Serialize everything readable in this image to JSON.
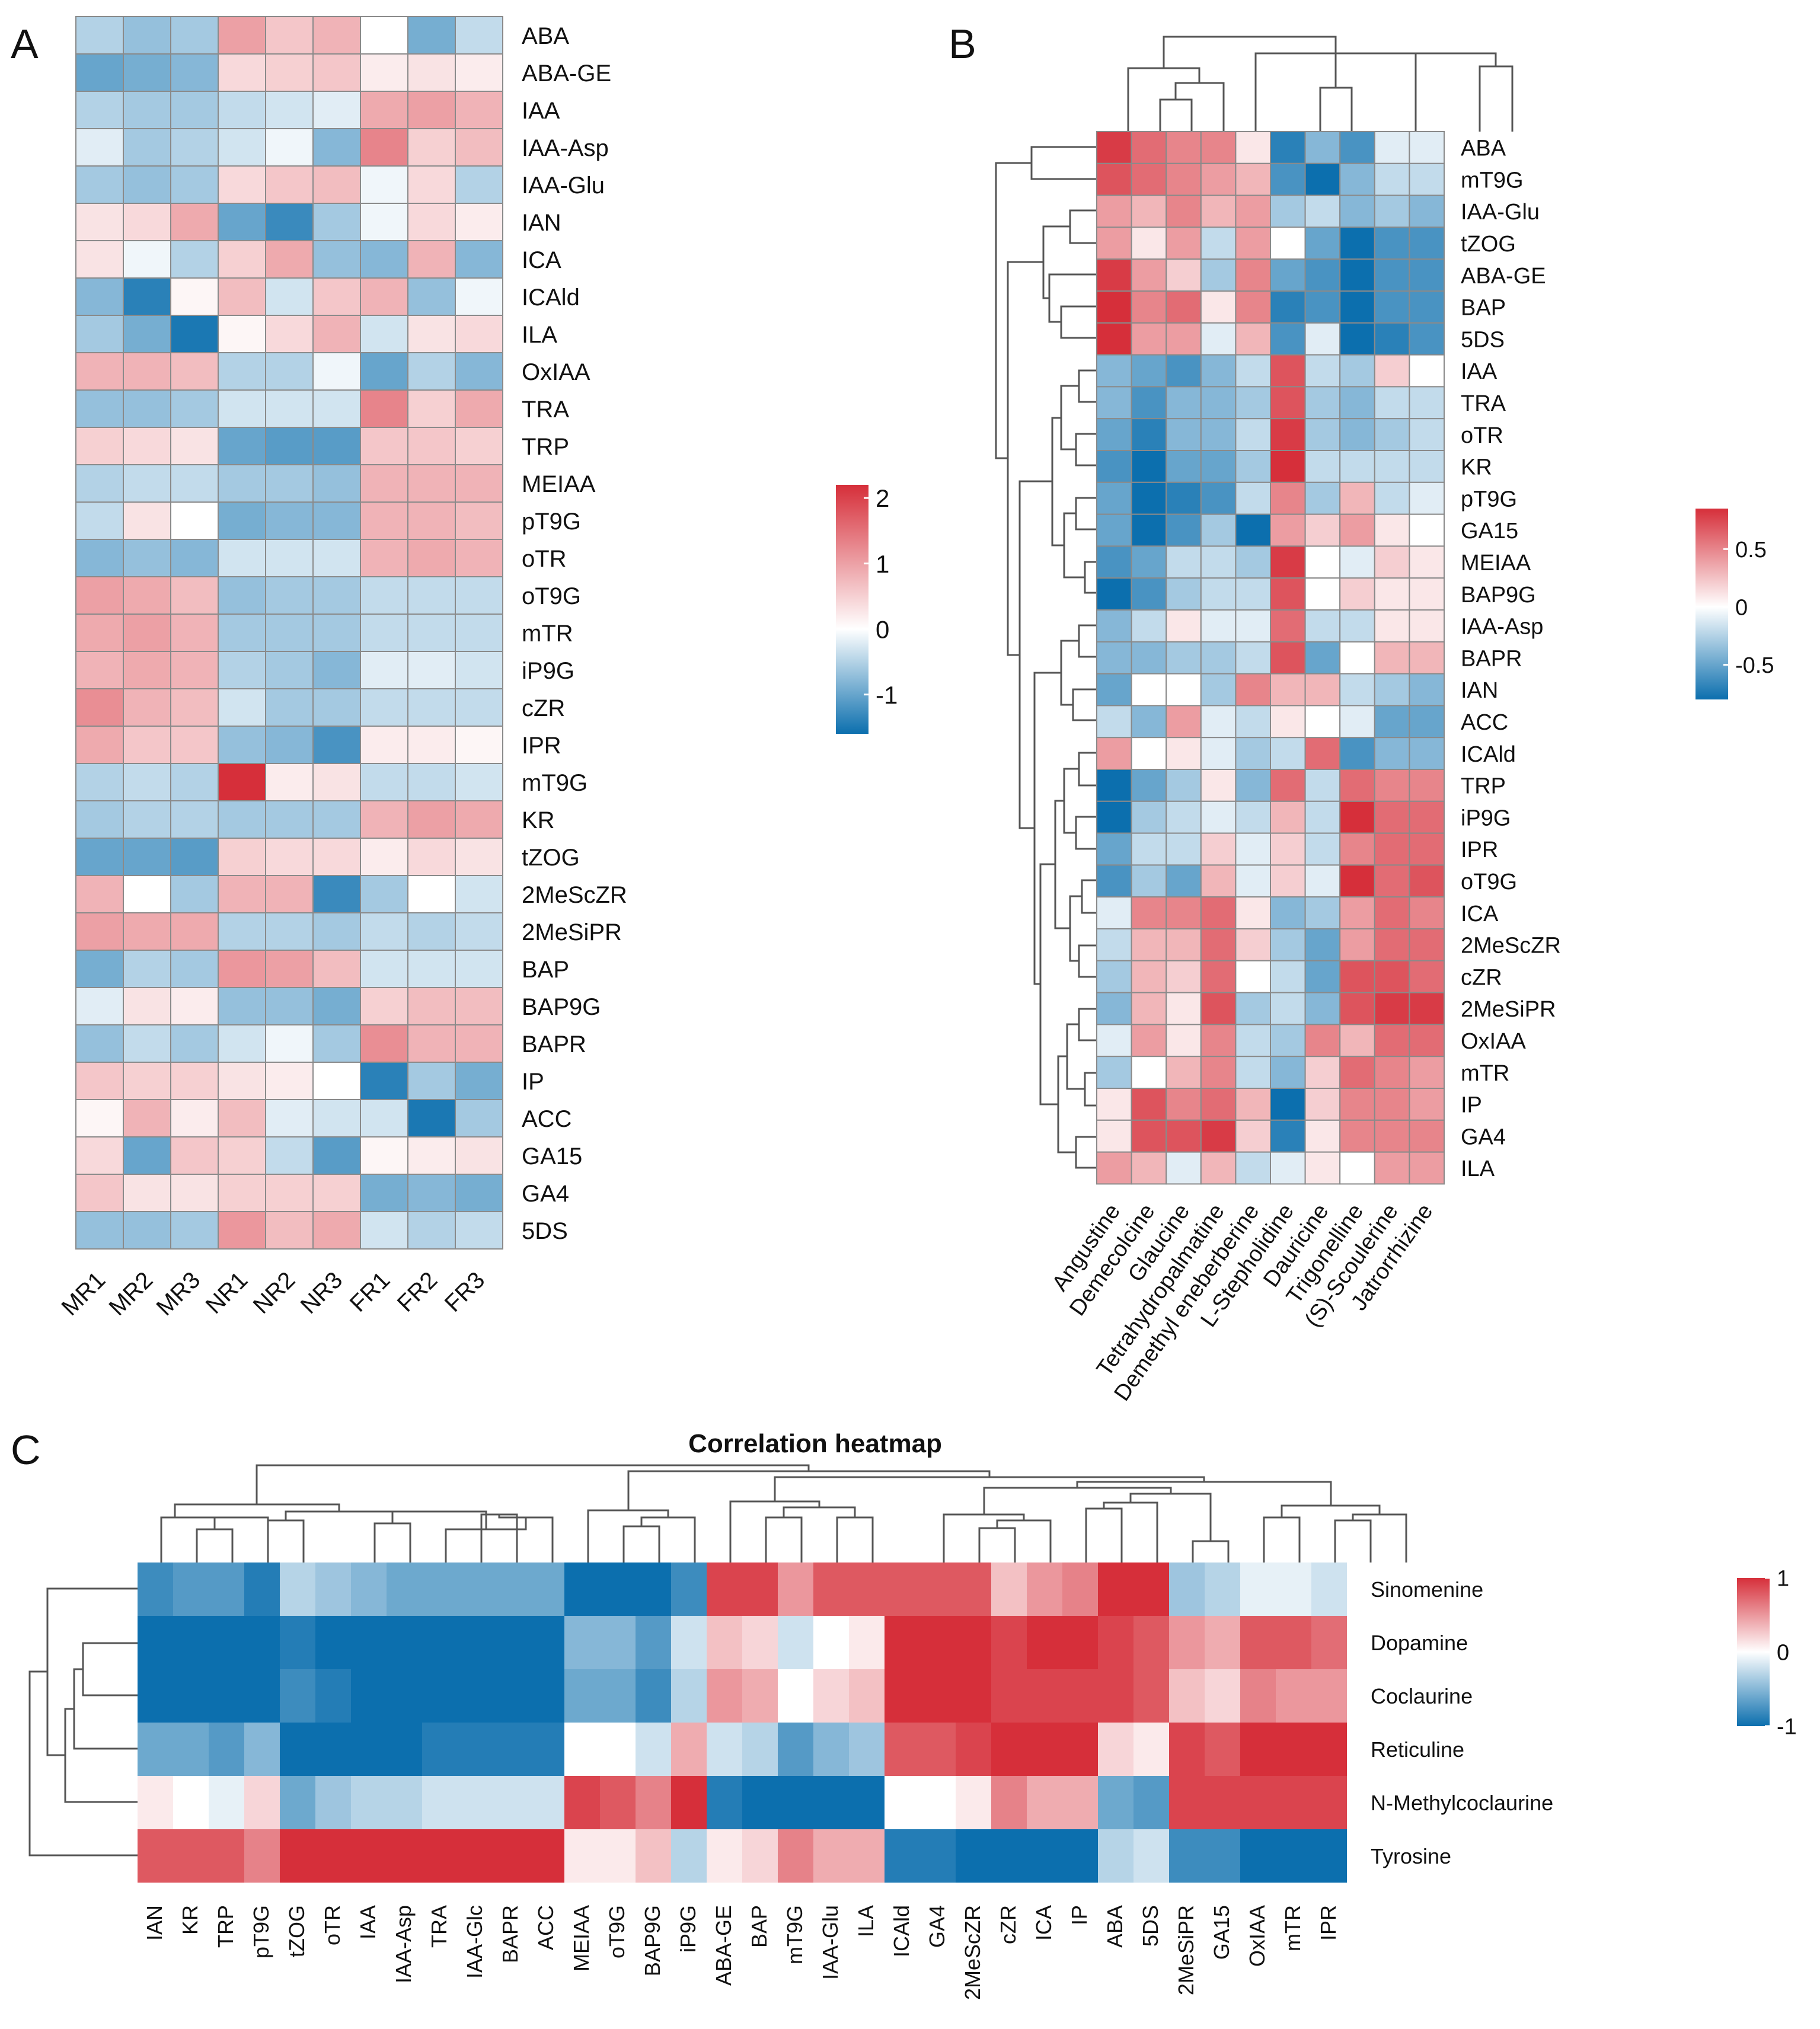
{
  "colors": {
    "low": "#0c6fae",
    "mid": "#ffffff",
    "high": "#d62f3a",
    "cell_border": "#8a8a8a",
    "tree": "#555555"
  },
  "panel_labels": {
    "a": "A",
    "b": "B",
    "c": "C"
  },
  "chart_data": [
    {
      "type": "heatmap",
      "panel": "A",
      "title": "",
      "columns": [
        "MR1",
        "MR2",
        "MR3",
        "NR1",
        "NR2",
        "NR3",
        "FR1",
        "FR2",
        "FR3"
      ],
      "rows": [
        "ABA",
        "ABA-GE",
        "IAA",
        "IAA-Asp",
        "IAA-Glu",
        "IAN",
        "ICA",
        "ICAld",
        "ILA",
        "OxIAA",
        "TRA",
        "TRP",
        "MEIAA",
        "pT9G",
        "oTR",
        "oT9G",
        "mTR",
        "iP9G",
        "cZR",
        "IPR",
        "mT9G",
        "KR",
        "tZOG",
        "2MeScZR",
        "2MeSiPR",
        "BAP",
        "BAP9G",
        "BAPR",
        "IP",
        "ACC",
        "GA15",
        "GA4",
        "5DS"
      ],
      "values": [
        [
          -0.5,
          -0.7,
          -0.6,
          1.0,
          0.6,
          0.8,
          0.0,
          -0.9,
          -0.4
        ],
        [
          -1.0,
          -0.9,
          -0.8,
          0.4,
          0.5,
          0.6,
          0.2,
          0.3,
          0.2
        ],
        [
          -0.5,
          -0.6,
          -0.6,
          -0.4,
          -0.3,
          -0.2,
          0.9,
          1.0,
          0.8
        ],
        [
          -0.2,
          -0.6,
          -0.5,
          -0.3,
          -0.1,
          -0.8,
          1.3,
          0.5,
          0.7
        ],
        [
          -0.6,
          -0.7,
          -0.6,
          0.4,
          0.6,
          0.7,
          -0.1,
          0.4,
          -0.5
        ],
        [
          0.3,
          0.4,
          0.9,
          -1.0,
          -1.3,
          -0.6,
          -0.1,
          0.4,
          0.2
        ],
        [
          0.3,
          -0.1,
          -0.5,
          0.5,
          0.9,
          -0.7,
          -0.8,
          0.8,
          -0.8
        ],
        [
          -0.8,
          -1.4,
          0.1,
          0.7,
          -0.3,
          0.6,
          0.8,
          -0.7,
          -0.1
        ],
        [
          -0.6,
          -0.9,
          -1.5,
          0.1,
          0.4,
          0.8,
          -0.3,
          0.3,
          0.4
        ],
        [
          0.8,
          0.8,
          0.7,
          -0.5,
          -0.5,
          -0.1,
          -1.0,
          -0.5,
          -0.8
        ],
        [
          -0.7,
          -0.7,
          -0.6,
          -0.3,
          -0.3,
          -0.3,
          1.3,
          0.5,
          0.9
        ],
        [
          0.5,
          0.4,
          0.3,
          -1.0,
          -1.1,
          -1.1,
          0.6,
          0.6,
          0.5
        ],
        [
          -0.5,
          -0.4,
          -0.4,
          -0.6,
          -0.6,
          -0.7,
          0.8,
          0.8,
          0.8
        ],
        [
          -0.4,
          0.3,
          0.0,
          -0.9,
          -0.8,
          -0.8,
          0.8,
          0.8,
          0.7
        ],
        [
          -0.8,
          -0.7,
          -0.8,
          -0.3,
          -0.3,
          -0.3,
          0.8,
          0.9,
          0.8
        ],
        [
          1.0,
          0.9,
          0.7,
          -0.7,
          -0.6,
          -0.6,
          -0.4,
          -0.4,
          -0.4
        ],
        [
          0.9,
          1.0,
          0.8,
          -0.6,
          -0.6,
          -0.6,
          -0.4,
          -0.4,
          -0.4
        ],
        [
          0.8,
          0.9,
          0.8,
          -0.5,
          -0.6,
          -0.8,
          -0.2,
          -0.2,
          -0.3
        ],
        [
          1.2,
          0.8,
          0.7,
          -0.3,
          -0.6,
          -0.6,
          -0.4,
          -0.4,
          -0.4
        ],
        [
          0.9,
          0.6,
          0.6,
          -0.7,
          -0.8,
          -1.2,
          0.2,
          0.2,
          0.1
        ],
        [
          -0.5,
          -0.4,
          -0.5,
          2.2,
          0.2,
          0.3,
          -0.4,
          -0.4,
          -0.3
        ],
        [
          -0.6,
          -0.5,
          -0.5,
          -0.6,
          -0.6,
          -0.6,
          0.8,
          1.0,
          0.9
        ],
        [
          -1.0,
          -1.0,
          -1.1,
          0.5,
          0.4,
          0.4,
          0.2,
          0.4,
          0.3
        ],
        [
          0.8,
          0.0,
          -0.6,
          0.8,
          0.8,
          -1.3,
          -0.6,
          0.0,
          -0.3
        ],
        [
          1.0,
          0.9,
          0.9,
          -0.5,
          -0.5,
          -0.6,
          -0.4,
          -0.5,
          -0.4
        ],
        [
          -0.9,
          -0.5,
          -0.6,
          1.1,
          1.0,
          0.7,
          -0.3,
          -0.3,
          -0.3
        ],
        [
          -0.2,
          0.3,
          0.2,
          -0.7,
          -0.7,
          -0.9,
          0.5,
          0.7,
          0.7
        ],
        [
          -0.7,
          -0.4,
          -0.6,
          -0.3,
          -0.1,
          -0.6,
          1.2,
          0.8,
          0.8
        ],
        [
          0.6,
          0.5,
          0.5,
          0.3,
          0.2,
          0.0,
          -1.4,
          -0.6,
          -0.9
        ],
        [
          0.1,
          0.8,
          0.2,
          0.7,
          -0.2,
          -0.3,
          -0.3,
          -1.5,
          -0.6
        ],
        [
          0.4,
          -1.0,
          0.6,
          0.5,
          -0.4,
          -1.1,
          0.1,
          0.2,
          0.3
        ],
        [
          0.6,
          0.3,
          0.3,
          0.5,
          0.5,
          0.5,
          -0.9,
          -0.8,
          -0.9
        ],
        [
          -0.7,
          -0.7,
          -0.6,
          1.1,
          0.7,
          0.9,
          -0.3,
          -0.5,
          -0.4
        ]
      ],
      "legend": {
        "ticks": [
          "2",
          "1",
          "0",
          "-1"
        ],
        "range": [
          -1.6,
          2.2
        ]
      }
    },
    {
      "type": "heatmap",
      "panel": "B",
      "title": "",
      "columns": [
        "Angustine",
        "Demecolcine",
        "Glaucine",
        "Tetrahydropalmatine",
        "Demethyl eneberberine",
        "L-Stepholidine",
        "Dauricine",
        "Trigonelline",
        "(S)-Scoulerine",
        "Jatrorrhizine"
      ],
      "rows": [
        "ABA",
        "mT9G",
        "IAA-Glu",
        "tZOG",
        "ABA-GE",
        "BAP",
        "5DS",
        "IAA",
        "TRA",
        "oTR",
        "KR",
        "pT9G",
        "GA15",
        "MEIAA",
        "BAP9G",
        "IAA-Asp",
        "BAPR",
        "IAN",
        "ACC",
        "ICAld",
        "TRP",
        "iP9G",
        "IPR",
        "oT9G",
        "ICA",
        "2MeScZR",
        "cZR",
        "2MeSiPR",
        "OxIAA",
        "mTR",
        "IP",
        "GA4",
        "ILA"
      ],
      "values": [
        [
          0.8,
          0.6,
          0.5,
          0.5,
          0.1,
          -0.7,
          -0.4,
          -0.6,
          -0.1,
          -0.1
        ],
        [
          0.7,
          0.6,
          0.5,
          0.4,
          0.3,
          -0.6,
          -0.8,
          -0.4,
          -0.2,
          -0.2
        ],
        [
          0.4,
          0.3,
          0.5,
          0.3,
          0.4,
          -0.3,
          -0.2,
          -0.4,
          -0.3,
          -0.4
        ],
        [
          0.4,
          0.1,
          0.4,
          -0.2,
          0.4,
          0.0,
          -0.5,
          -0.9,
          -0.6,
          -0.6
        ],
        [
          0.8,
          0.4,
          0.2,
          -0.3,
          0.5,
          -0.5,
          -0.6,
          -0.8,
          -0.6,
          -0.6
        ],
        [
          0.9,
          0.5,
          0.6,
          0.1,
          0.5,
          -0.7,
          -0.6,
          -0.8,
          -0.6,
          -0.6
        ],
        [
          0.9,
          0.4,
          0.4,
          -0.1,
          0.3,
          -0.6,
          -0.1,
          -0.9,
          -0.7,
          -0.6
        ],
        [
          -0.4,
          -0.5,
          -0.6,
          -0.4,
          -0.2,
          0.7,
          -0.2,
          -0.3,
          0.2,
          0.0
        ],
        [
          -0.4,
          -0.6,
          -0.4,
          -0.4,
          -0.3,
          0.7,
          -0.3,
          -0.4,
          -0.2,
          -0.2
        ],
        [
          -0.5,
          -0.7,
          -0.4,
          -0.4,
          -0.2,
          0.8,
          -0.3,
          -0.4,
          -0.3,
          -0.2
        ],
        [
          -0.6,
          -0.8,
          -0.5,
          -0.5,
          -0.3,
          0.9,
          -0.2,
          -0.2,
          -0.2,
          -0.2
        ],
        [
          -0.5,
          -0.9,
          -0.7,
          -0.6,
          -0.2,
          0.5,
          -0.3,
          0.3,
          -0.2,
          -0.1
        ],
        [
          -0.5,
          -0.9,
          -0.6,
          -0.3,
          -0.8,
          0.4,
          0.2,
          0.4,
          0.1,
          0.0
        ],
        [
          -0.6,
          -0.5,
          -0.2,
          -0.2,
          -0.3,
          0.8,
          0.0,
          -0.1,
          0.2,
          0.1
        ],
        [
          -0.8,
          -0.6,
          -0.3,
          -0.2,
          -0.2,
          0.7,
          0.0,
          0.2,
          0.1,
          0.1
        ],
        [
          -0.4,
          -0.2,
          0.1,
          -0.1,
          -0.1,
          0.6,
          -0.2,
          -0.2,
          0.1,
          0.1
        ],
        [
          -0.4,
          -0.4,
          -0.3,
          -0.3,
          -0.2,
          0.7,
          -0.5,
          0.0,
          0.3,
          0.3
        ],
        [
          -0.5,
          0.0,
          0.0,
          -0.3,
          0.5,
          0.3,
          0.3,
          -0.2,
          -0.3,
          -0.4
        ],
        [
          -0.2,
          -0.4,
          0.4,
          -0.1,
          -0.2,
          0.1,
          0.0,
          -0.1,
          -0.5,
          -0.5
        ],
        [
          0.4,
          0.0,
          0.1,
          -0.1,
          -0.3,
          -0.2,
          0.6,
          -0.6,
          -0.4,
          -0.4
        ],
        [
          -0.8,
          -0.5,
          -0.3,
          0.1,
          -0.4,
          0.6,
          -0.2,
          0.6,
          0.5,
          0.5
        ],
        [
          -0.8,
          -0.3,
          -0.2,
          -0.1,
          -0.2,
          0.3,
          -0.2,
          0.9,
          0.6,
          0.6
        ],
        [
          -0.5,
          -0.2,
          -0.2,
          0.2,
          -0.1,
          0.2,
          -0.2,
          0.5,
          0.6,
          0.6
        ],
        [
          -0.6,
          -0.3,
          -0.5,
          0.3,
          -0.1,
          0.2,
          -0.1,
          0.9,
          0.6,
          0.7
        ],
        [
          -0.1,
          0.5,
          0.5,
          0.6,
          0.1,
          -0.4,
          -0.3,
          0.4,
          0.6,
          0.5
        ],
        [
          -0.2,
          0.3,
          0.3,
          0.6,
          0.2,
          -0.3,
          -0.5,
          0.4,
          0.6,
          0.6
        ],
        [
          -0.3,
          0.3,
          0.2,
          0.6,
          0.0,
          -0.2,
          -0.5,
          0.7,
          0.7,
          0.6
        ],
        [
          -0.4,
          0.3,
          0.1,
          0.7,
          -0.3,
          -0.2,
          -0.4,
          0.7,
          0.8,
          0.8
        ],
        [
          -0.1,
          0.4,
          0.1,
          0.5,
          -0.2,
          -0.3,
          0.5,
          0.3,
          0.6,
          0.6
        ],
        [
          -0.3,
          0.0,
          0.3,
          0.5,
          -0.2,
          -0.4,
          0.2,
          0.6,
          0.5,
          0.4
        ],
        [
          0.1,
          0.7,
          0.5,
          0.6,
          0.3,
          -0.8,
          0.2,
          0.5,
          0.5,
          0.4
        ],
        [
          0.1,
          0.7,
          0.7,
          0.8,
          0.2,
          -0.7,
          0.1,
          0.5,
          0.5,
          0.5
        ],
        [
          0.4,
          0.3,
          -0.1,
          0.3,
          -0.2,
          -0.1,
          0.1,
          0.0,
          0.4,
          0.4
        ]
      ],
      "legend": {
        "ticks": [
          "0.5",
          "0",
          "-0.5"
        ],
        "range": [
          -0.8,
          0.85
        ]
      }
    },
    {
      "type": "heatmap",
      "panel": "C",
      "title": "Correlation heatmap",
      "columns": [
        "IAN",
        "KR",
        "TRP",
        "pT9G",
        "tZOG",
        "oTR",
        "IAA",
        "IAA-Asp",
        "TRA",
        "IAA-Glc",
        "BAPR",
        "ACC",
        "MEIAA",
        "oT9G",
        "BAP9G",
        "iP9G",
        "ABA-GE",
        "BAP",
        "mT9G",
        "IAA-Glu",
        "ILA",
        "ICAld",
        "GA4",
        "2MeScZR",
        "cZR",
        "ICA",
        "IP",
        "ABA",
        "5DS",
        "2MeSiPR",
        "GA15",
        "OxIAA",
        "mTR",
        "IPR"
      ],
      "rows": [
        "Sinomenine",
        "Dopamine",
        "Coclaurine",
        "Reticuline",
        "N-Methylcoclaurine",
        "Tyrosine"
      ],
      "values": [
        [
          -0.8,
          -0.7,
          -0.7,
          -0.9,
          -0.3,
          -0.4,
          -0.5,
          -0.6,
          -0.6,
          -0.6,
          -0.6,
          -0.6,
          -1.0,
          -1.0,
          -1.0,
          -0.8,
          0.9,
          0.9,
          0.5,
          0.8,
          0.8,
          0.8,
          0.8,
          0.8,
          0.3,
          0.5,
          0.6,
          1.0,
          1.0,
          -0.4,
          -0.3,
          -0.1,
          -0.1,
          -0.2
        ],
        [
          -1.0,
          -1.0,
          -1.0,
          -1.0,
          -0.9,
          -1.0,
          -1.0,
          -1.0,
          -1.0,
          -1.0,
          -1.0,
          -1.0,
          -0.5,
          -0.5,
          -0.7,
          -0.2,
          0.3,
          0.2,
          -0.2,
          0.0,
          0.1,
          1.0,
          1.0,
          1.0,
          0.9,
          1.0,
          1.0,
          0.9,
          0.8,
          0.5,
          0.4,
          0.8,
          0.8,
          0.7
        ],
        [
          -1.0,
          -1.0,
          -1.0,
          -1.0,
          -0.8,
          -0.9,
          -1.0,
          -1.0,
          -1.0,
          -1.0,
          -1.0,
          -1.0,
          -0.6,
          -0.6,
          -0.8,
          -0.3,
          0.5,
          0.4,
          0.0,
          0.2,
          0.3,
          1.0,
          1.0,
          1.0,
          0.9,
          0.9,
          0.9,
          0.9,
          0.8,
          0.3,
          0.2,
          0.6,
          0.5,
          0.5
        ],
        [
          -0.6,
          -0.6,
          -0.7,
          -0.5,
          -1.0,
          -1.0,
          -1.0,
          -1.0,
          -0.9,
          -0.9,
          -0.9,
          -0.9,
          0.0,
          0.0,
          -0.2,
          0.4,
          -0.2,
          -0.3,
          -0.7,
          -0.5,
          -0.4,
          0.8,
          0.8,
          0.9,
          1.0,
          1.0,
          1.0,
          0.2,
          0.1,
          0.9,
          0.8,
          1.0,
          1.0,
          1.0
        ],
        [
          0.1,
          0.0,
          -0.1,
          0.2,
          -0.6,
          -0.4,
          -0.3,
          -0.3,
          -0.2,
          -0.2,
          -0.2,
          -0.2,
          0.9,
          0.8,
          0.6,
          1.0,
          -0.9,
          -1.0,
          -1.0,
          -1.0,
          -1.0,
          0.0,
          0.0,
          0.1,
          0.6,
          0.4,
          0.4,
          -0.6,
          -0.7,
          0.9,
          0.9,
          0.9,
          0.9,
          0.9
        ],
        [
          0.8,
          0.8,
          0.8,
          0.6,
          1.0,
          1.0,
          1.0,
          1.0,
          1.0,
          1.0,
          1.0,
          1.0,
          0.1,
          0.1,
          0.3,
          -0.3,
          0.1,
          0.2,
          0.6,
          0.4,
          0.4,
          -0.9,
          -0.9,
          -1.0,
          -1.0,
          -1.0,
          -1.0,
          -0.3,
          -0.2,
          -0.8,
          -0.8,
          -1.0,
          -1.0,
          -1.0
        ]
      ],
      "legend": {
        "ticks": [
          "1",
          "0",
          "-1"
        ],
        "range": [
          -1,
          1
        ]
      }
    }
  ]
}
